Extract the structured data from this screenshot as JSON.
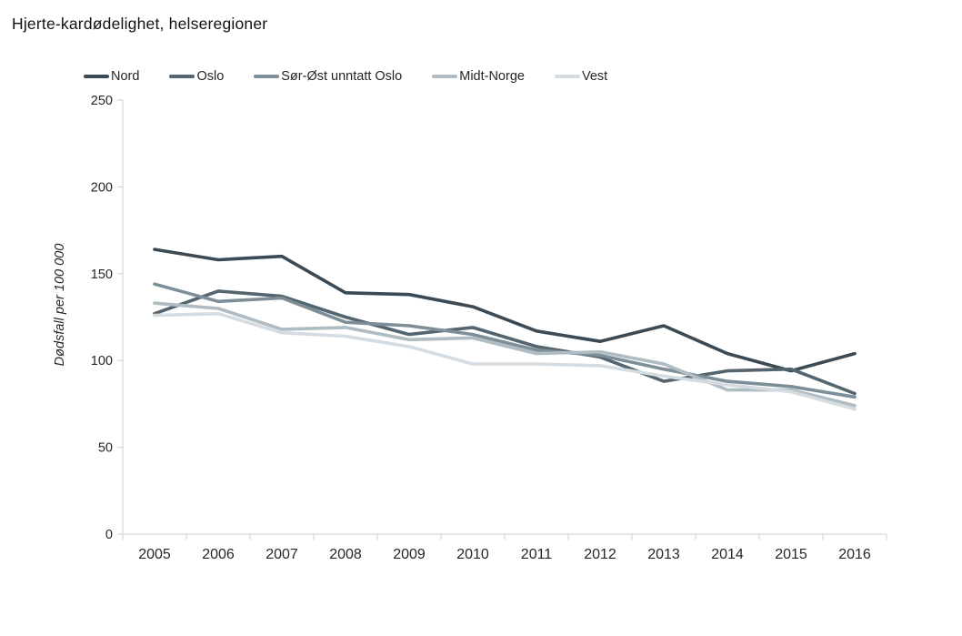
{
  "chart_data": {
    "type": "line",
    "title": "Hjerte-kardødelighet, helseregioner",
    "ylabel": "Dødsfall per 100 000",
    "xlabel": "",
    "x": [
      2005,
      2006,
      2007,
      2008,
      2009,
      2010,
      2011,
      2012,
      2013,
      2014,
      2015,
      2016
    ],
    "series": [
      {
        "name": "Nord",
        "color": "#3b4a54",
        "values": [
          164,
          158,
          160,
          139,
          138,
          131,
          117,
          111,
          120,
          104,
          94,
          104
        ]
      },
      {
        "name": "Oslo",
        "color": "#54656f",
        "values": [
          127,
          140,
          137,
          125,
          115,
          119,
          108,
          102,
          88,
          94,
          95,
          81
        ]
      },
      {
        "name": "Sør-Øst unntatt Oslo",
        "color": "#7e8e98",
        "values": [
          144,
          134,
          136,
          122,
          120,
          115,
          106,
          103,
          95,
          88,
          85,
          79
        ]
      },
      {
        "name": "Midt-Norge",
        "color": "#afbcc3",
        "values": [
          133,
          130,
          118,
          119,
          112,
          113,
          104,
          105,
          98,
          83,
          83,
          74
        ]
      },
      {
        "name": "Vest",
        "color": "#d5dce1",
        "values": [
          126,
          127,
          116,
          114,
          108,
          98,
          98,
          97,
          91,
          86,
          82,
          72
        ]
      }
    ],
    "ylim": [
      0,
      250
    ],
    "yticks": [
      0,
      50,
      100,
      150,
      200,
      250
    ],
    "grid": false,
    "legend_position": "top-left",
    "axis_color": "#d9d9d9",
    "tick_label_color": "#262626"
  }
}
